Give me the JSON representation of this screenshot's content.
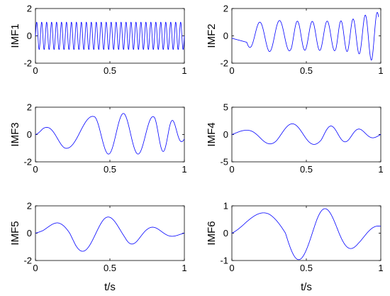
{
  "figure": {
    "xlabel_bottom": "t/s"
  },
  "chart_data": [
    {
      "type": "line",
      "ylabel": "IMF1",
      "xlim": [
        0,
        1
      ],
      "ylim": [
        -2,
        2
      ],
      "xticks": [
        "0",
        "0.5",
        "1"
      ],
      "yticks": [
        "-2",
        "0",
        "2"
      ],
      "series": [
        {
          "color": "#0000ff",
          "x_end": 1.0,
          "cycles": [
            [
              0,
              1,
              30
            ]
          ],
          "levels": [
            [
              0,
              1.0
            ],
            [
              1,
              1.0
            ]
          ]
        }
      ]
    },
    {
      "type": "line",
      "ylabel": "IMF2",
      "xlim": [
        0,
        1
      ],
      "ylim": [
        -2,
        2
      ],
      "xticks": [
        "0",
        "0.5",
        "1"
      ],
      "yticks": [
        "-2",
        "0",
        "2"
      ],
      "series": [
        {
          "color": "#0000ff",
          "x_end": 0.985,
          "cycles": [
            [
              0,
              0,
              0.6
            ],
            [
              0.1,
              0.4,
              2.25
            ],
            [
              0.4,
              0.7,
              3.0
            ],
            [
              0.7,
              0.985,
              3.5
            ]
          ],
          "levels": [
            [
              0,
              0.3
            ],
            [
              0.1,
              0.8
            ],
            [
              0.25,
              1.15
            ],
            [
              0.5,
              1.05
            ],
            [
              0.75,
              1.1
            ],
            [
              0.87,
              1.35
            ],
            [
              0.94,
              1.8
            ],
            [
              0.985,
              1.7
            ]
          ]
        }
      ]
    },
    {
      "type": "line",
      "ylabel": "IMF3",
      "xlim": [
        0,
        1
      ],
      "ylim": [
        -2,
        2
      ],
      "xticks": [
        "0",
        "0.5",
        "1"
      ],
      "yticks": [
        "-2",
        "0",
        "2"
      ],
      "series": [
        {
          "color": "#0000ff",
          "x_end": 1.0,
          "cycles": [
            [
              0,
              0.05,
              0.2
            ],
            [
              0.05,
              0.2,
              0.55
            ],
            [
              0.2,
              0.4,
              0.55
            ],
            [
              0.4,
              0.8,
              2.0
            ],
            [
              0.8,
              1.0,
              1.55
            ]
          ],
          "levels": [
            [
              0,
              0.1
            ],
            [
              0.05,
              0.45
            ],
            [
              0.2,
              1.0
            ],
            [
              0.3,
              1.25
            ],
            [
              0.46,
              1.4
            ],
            [
              0.6,
              1.55
            ],
            [
              0.75,
              1.35
            ],
            [
              0.9,
              1.2
            ],
            [
              1.0,
              0.4
            ]
          ]
        }
      ]
    },
    {
      "type": "line",
      "ylabel": "IMF4",
      "xlim": [
        0,
        1
      ],
      "ylim": [
        -5,
        5
      ],
      "xticks": [
        "0",
        "0.5",
        "1"
      ],
      "yticks": [
        "-5",
        "0",
        "5"
      ],
      "series": [
        {
          "color": "#0000ff",
          "x_end": 1.0,
          "cycles": [
            [
              0,
              0.1,
              0.3
            ],
            [
              0.1,
              0.3,
              0.6
            ],
            [
              0.3,
              0.6,
              1.0
            ],
            [
              0.6,
              1.0,
              2.1
            ]
          ],
          "levels": [
            [
              0,
              0.5
            ],
            [
              0.1,
              0.8
            ],
            [
              0.2,
              1.5
            ],
            [
              0.3,
              1.9
            ],
            [
              0.47,
              2.0
            ],
            [
              0.6,
              1.7
            ],
            [
              0.8,
              1.25
            ],
            [
              0.9,
              0.8
            ],
            [
              1.0,
              0.4
            ]
          ]
        }
      ]
    },
    {
      "type": "line",
      "ylabel": "IMF5",
      "xlim": [
        0,
        1
      ],
      "ylim": [
        -2,
        2
      ],
      "xticks": [
        "0",
        "0.5",
        "1"
      ],
      "yticks": [
        "-2",
        "0",
        "2"
      ],
      "series": [
        {
          "color": "#0000ff",
          "x_end": 1.0,
          "cycles": [
            [
              0,
              0.23,
              0.5
            ],
            [
              0.23,
              0.6,
              1.05
            ],
            [
              0.6,
              1.0,
              1.45
            ]
          ],
          "levels": [
            [
              0,
              0.2
            ],
            [
              0.05,
              0.3
            ],
            [
              0.15,
              0.85
            ],
            [
              0.27,
              1.35
            ],
            [
              0.46,
              1.25
            ],
            [
              0.6,
              0.95
            ],
            [
              0.75,
              0.5
            ],
            [
              0.88,
              0.3
            ],
            [
              1.0,
              0.1
            ]
          ]
        }
      ]
    },
    {
      "type": "line",
      "ylabel": "IMF6",
      "xlim": [
        0,
        1
      ],
      "ylim": [
        -1,
        1
      ],
      "xticks": [
        "0",
        "0.5",
        "1"
      ],
      "yticks": [
        "-1",
        "0",
        "1"
      ],
      "series": [
        {
          "color": "#0000ff",
          "x_end": 1.0,
          "cycles": [
            [
              0,
              0.36,
              0.5
            ],
            [
              0.36,
              0.72,
              1.0
            ],
            [
              0.72,
              1.0,
              0.75
            ]
          ],
          "levels": [
            [
              0,
              0.3
            ],
            [
              0.1,
              0.55
            ],
            [
              0.25,
              0.85
            ],
            [
              0.36,
              1.0
            ],
            [
              0.5,
              0.95
            ],
            [
              0.57,
              0.97
            ],
            [
              0.72,
              0.78
            ],
            [
              0.85,
              0.45
            ],
            [
              1.0,
              0.25
            ]
          ]
        }
      ]
    }
  ]
}
